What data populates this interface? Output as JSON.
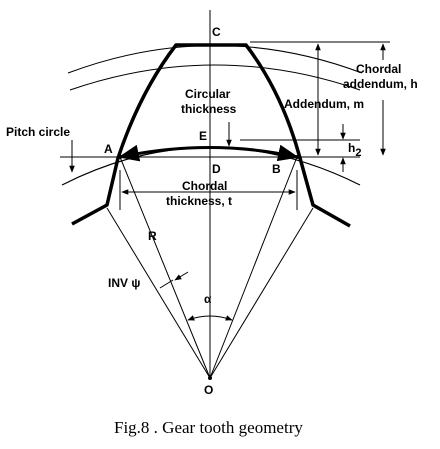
{
  "points": {
    "C": "C",
    "A": "A",
    "B": "B",
    "D": "D",
    "E": "E",
    "O": "O",
    "R": "R"
  },
  "labels": {
    "pitch_circle": "Pitch circle",
    "circular_thickness_1": "Circular",
    "circular_thickness_2": "thickness",
    "chordal_thickness_1": "Chordal",
    "chordal_thickness_2": "thickness, t",
    "chordal_addendum_1": "Chordal",
    "chordal_addendum_2": "addendum, h",
    "addendum": "Addendum, m",
    "h2_main": "h",
    "h2_sub": "2",
    "inv_psi": "INV ψ",
    "alpha": "α"
  },
  "caption": "Fig.8 . Gear tooth geometry"
}
